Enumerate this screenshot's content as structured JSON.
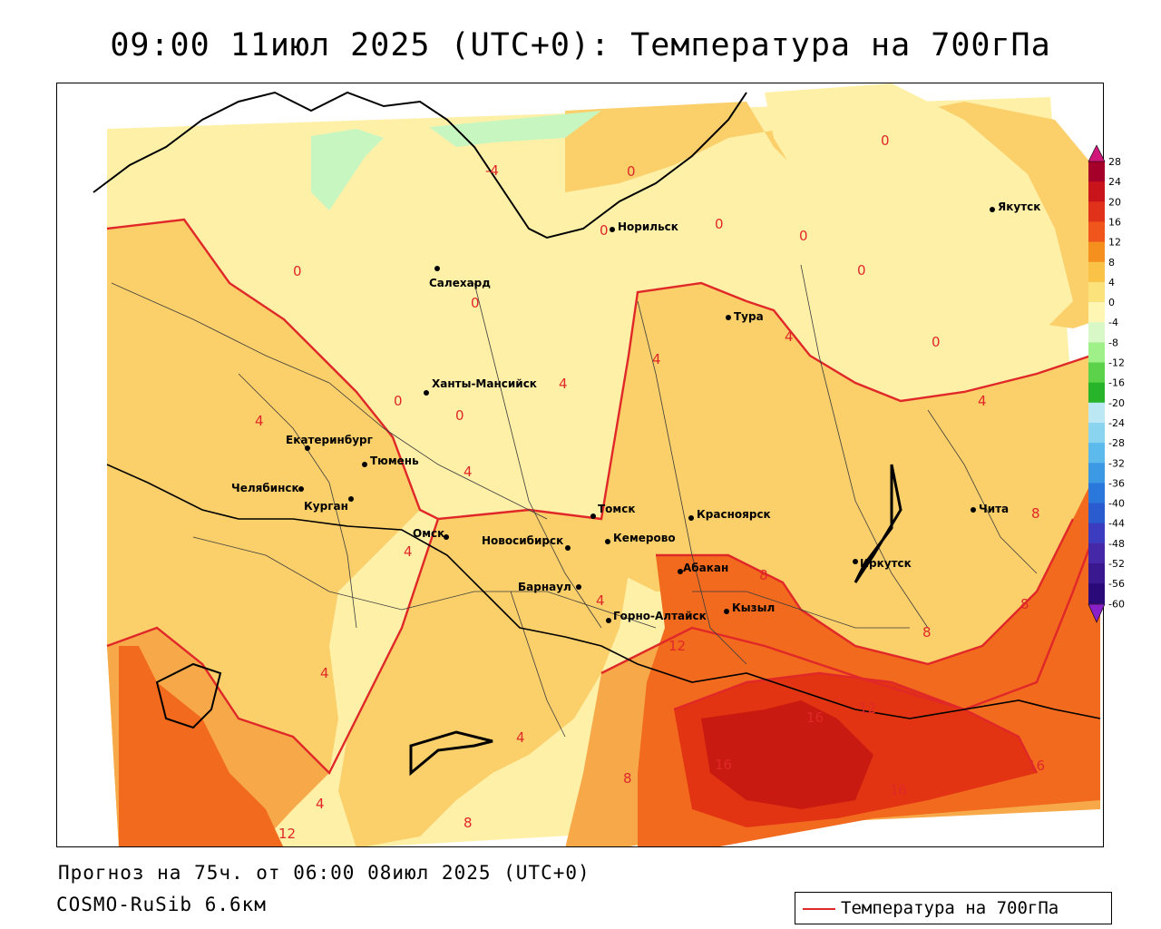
{
  "title": "09:00 11июл 2025 (UTC+0): Температура на 700гПа",
  "footer": {
    "forecast": "Прогноз на 75ч. от 06:00 08июл 2025 (UTC+0)",
    "model": "COSMO-RuSib 6.6км"
  },
  "legend": {
    "label": "Температура на 700гПа",
    "color": "#e02828"
  },
  "colors": {
    "contour": "#e02828",
    "band_m4_0": "#c8f6c0",
    "band_0_4": "#fff0a8",
    "band_4_8": "#fbcf6a",
    "band_8_12": "#f7a94a",
    "band_12_16": "#f26a1e",
    "band_16_20": "#e23412",
    "band_20_24": "#c81a10"
  },
  "cities": [
    {
      "name": "Якутск"
    },
    {
      "name": "Норильск"
    },
    {
      "name": "Салехард"
    },
    {
      "name": "Тура"
    },
    {
      "name": "Ханты-Мансийск"
    },
    {
      "name": "Екатеринбург"
    },
    {
      "name": "Тюмень"
    },
    {
      "name": "Челябинск"
    },
    {
      "name": "Курган"
    },
    {
      "name": "Омск"
    },
    {
      "name": "Томск"
    },
    {
      "name": "Красноярск"
    },
    {
      "name": "Новосибирск"
    },
    {
      "name": "Кемерово"
    },
    {
      "name": "Барнаул"
    },
    {
      "name": "Абакан"
    },
    {
      "name": "Горно-Алтайск"
    },
    {
      "name": "Кызыл"
    },
    {
      "name": "Иркутск"
    },
    {
      "name": "Чита"
    }
  ],
  "contour_labels": [
    "0",
    "0",
    "0",
    "0",
    "0",
    "0",
    "0",
    "0",
    "0",
    "0",
    "0",
    "-4",
    "4",
    "4",
    "4",
    "4",
    "4",
    "4",
    "4",
    "4",
    "4",
    "4",
    "4",
    "8",
    "8",
    "8",
    "8",
    "8",
    "8",
    "12",
    "12",
    "12",
    "16",
    "16",
    "16",
    "16"
  ],
  "colorbar": {
    "ticks": [
      "28",
      "24",
      "20",
      "16",
      "12",
      "8",
      "4",
      "0",
      "-4",
      "-8",
      "-12",
      "-16",
      "-20",
      "-24",
      "-28",
      "-32",
      "-36",
      "-40",
      "-44",
      "-48",
      "-52",
      "-56",
      "-60"
    ],
    "colors": [
      "#a4002a",
      "#c8141a",
      "#e0321a",
      "#f0561c",
      "#f5901e",
      "#fac246",
      "#fbe27a",
      "#fff6b4",
      "#d8f8c8",
      "#a0f08a",
      "#5cd24a",
      "#28b42a",
      "#bce8f4",
      "#8ad4f0",
      "#5cbaec",
      "#3c9ae4",
      "#2a78dc",
      "#2a5cd0",
      "#3c3cc0",
      "#4428a8",
      "#3a1890",
      "#2a0a78"
    ]
  }
}
